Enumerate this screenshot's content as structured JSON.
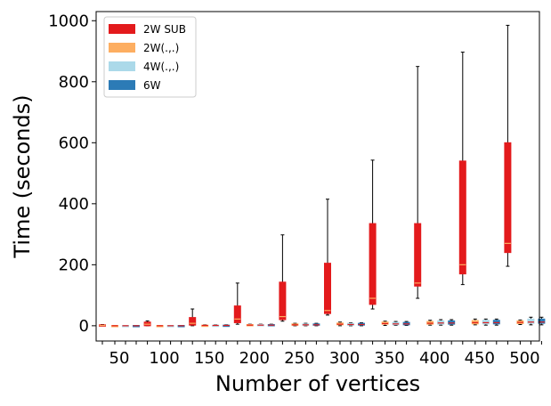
{
  "chart_data": {
    "type": "boxplot",
    "title": "",
    "xlabel": "Number of vertices",
    "ylabel": "Time (seconds)",
    "categories": [
      "50",
      "100",
      "150",
      "200",
      "250",
      "300",
      "350",
      "400",
      "450",
      "500"
    ],
    "ylim": [
      -50,
      1030
    ],
    "yticks": [
      0,
      200,
      400,
      600,
      800,
      1000
    ],
    "legend_position": "top-left",
    "series": [
      {
        "name": "2W SUB",
        "color": "#e31a1c",
        "median_color": "#fdae61",
        "boxes": [
          {
            "min": 0,
            "q1": 0,
            "median": 1,
            "q3": 3,
            "max": 4
          },
          {
            "min": 0,
            "q1": 0,
            "median": 5,
            "q3": 12,
            "max": 16
          },
          {
            "min": 0,
            "q1": 2,
            "median": 8,
            "q3": 27,
            "max": 55
          },
          {
            "min": 5,
            "q1": 10,
            "median": 22,
            "q3": 65,
            "max": 140
          },
          {
            "min": 15,
            "q1": 20,
            "median": 30,
            "q3": 143,
            "max": 298
          },
          {
            "min": 35,
            "q1": 40,
            "median": 50,
            "q3": 205,
            "max": 415
          },
          {
            "min": 55,
            "q1": 70,
            "median": 90,
            "q3": 335,
            "max": 543
          },
          {
            "min": 90,
            "q1": 130,
            "median": 140,
            "q3": 335,
            "max": 850
          },
          {
            "min": 135,
            "q1": 170,
            "median": 200,
            "q3": 540,
            "max": 897
          },
          {
            "min": 195,
            "q1": 240,
            "median": 270,
            "q3": 600,
            "max": 985
          }
        ]
      },
      {
        "name": "2W(.,.)",
        "color": "#fdae61",
        "median_color": "#e31a1c",
        "boxes": [
          {
            "min": 0,
            "q1": 0,
            "median": 0,
            "q3": 1,
            "max": 1
          },
          {
            "min": 0,
            "q1": 0,
            "median": 0,
            "q3": 1,
            "max": 1
          },
          {
            "min": 0,
            "q1": 0,
            "median": 1,
            "q3": 2,
            "max": 3
          },
          {
            "min": 0,
            "q1": 1,
            "median": 2,
            "q3": 4,
            "max": 5
          },
          {
            "min": 0,
            "q1": 2,
            "median": 3,
            "q3": 6,
            "max": 8
          },
          {
            "min": 0,
            "q1": 3,
            "median": 5,
            "q3": 9,
            "max": 12
          },
          {
            "min": 1,
            "q1": 5,
            "median": 7,
            "q3": 12,
            "max": 15
          },
          {
            "min": 2,
            "q1": 5,
            "median": 8,
            "q3": 14,
            "max": 18
          },
          {
            "min": 3,
            "q1": 6,
            "median": 10,
            "q3": 17,
            "max": 22
          },
          {
            "min": 4,
            "q1": 7,
            "median": 11,
            "q3": 16,
            "max": 19
          }
        ]
      },
      {
        "name": "4W(.,.)",
        "color": "#abd9e9",
        "median_color": "#e31a1c",
        "boxes": [
          {
            "min": 0,
            "q1": 0,
            "median": 0,
            "q3": 1,
            "max": 1
          },
          {
            "min": 0,
            "q1": 0,
            "median": 0,
            "q3": 1,
            "max": 1
          },
          {
            "min": 0,
            "q1": 0,
            "median": 1,
            "q3": 2,
            "max": 3
          },
          {
            "min": 0,
            "q1": 1,
            "median": 2,
            "q3": 4,
            "max": 5
          },
          {
            "min": 0,
            "q1": 2,
            "median": 3,
            "q3": 6,
            "max": 8
          },
          {
            "min": 0,
            "q1": 2,
            "median": 4,
            "q3": 8,
            "max": 10
          },
          {
            "min": 1,
            "q1": 3,
            "median": 6,
            "q3": 11,
            "max": 14
          },
          {
            "min": 2,
            "q1": 5,
            "median": 9,
            "q3": 16,
            "max": 20
          },
          {
            "min": 2,
            "q1": 6,
            "median": 10,
            "q3": 18,
            "max": 22
          },
          {
            "min": 3,
            "q1": 8,
            "median": 12,
            "q3": 22,
            "max": 28
          }
        ]
      },
      {
        "name": "6W",
        "color": "#2c7bb6",
        "median_color": "#e31a1c",
        "boxes": [
          {
            "min": 0,
            "q1": 0,
            "median": 0,
            "q3": 1,
            "max": 1
          },
          {
            "min": 0,
            "q1": 0,
            "median": 0,
            "q3": 1,
            "max": 1
          },
          {
            "min": 0,
            "q1": 0,
            "median": 1,
            "q3": 2,
            "max": 3
          },
          {
            "min": 0,
            "q1": 1,
            "median": 2,
            "q3": 4,
            "max": 5
          },
          {
            "min": 0,
            "q1": 2,
            "median": 3,
            "q3": 6,
            "max": 8
          },
          {
            "min": 0,
            "q1": 2,
            "median": 4,
            "q3": 8,
            "max": 10
          },
          {
            "min": 1,
            "q1": 3,
            "median": 6,
            "q3": 11,
            "max": 14
          },
          {
            "min": 2,
            "q1": 5,
            "median": 9,
            "q3": 16,
            "max": 20
          },
          {
            "min": 2,
            "q1": 6,
            "median": 10,
            "q3": 18,
            "max": 22
          },
          {
            "min": 3,
            "q1": 8,
            "median": 12,
            "q3": 22,
            "max": 28
          }
        ]
      }
    ]
  }
}
